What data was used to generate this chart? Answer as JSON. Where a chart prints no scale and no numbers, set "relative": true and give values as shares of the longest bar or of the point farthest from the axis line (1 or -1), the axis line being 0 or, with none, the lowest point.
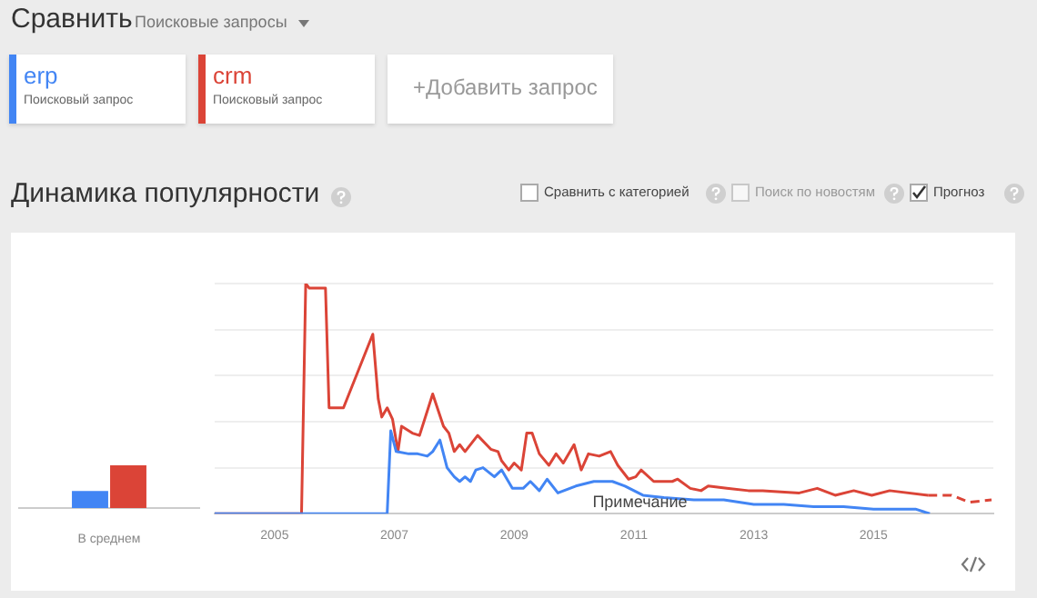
{
  "chart_data": [
    {
      "type": "other",
      "title": "Сравнить",
      "subtitle": "Динамика популярности",
      "annotations": [
        "Поисковые запросы",
        "Поисковый запрос",
        "Поисковый запрос",
        "+Добавить запрос",
        "Сравнить с категорией",
        "Поиск по новостям",
        "Прогноз"
      ]
    },
    {
      "type": "bar",
      "relative": true,
      "categories": [
        "В среднем"
      ],
      "series": [
        {
          "color": "#4285f4",
          "values": [
            0.4
          ]
        },
        {
          "color": "#db4437",
          "values": [
            1
          ]
        }
      ]
    },
    {
      "type": "line",
      "relative": true,
      "xlim": [
        2004,
        2017
      ],
      "xticks": [
        2005,
        2007,
        2009,
        2011,
        2013,
        2015
      ],
      "grid": "y",
      "legend": "top left",
      "annotations": [
        {
          "text": "Примечание",
          "x": 2011.1,
          "y": 0.05
        }
      ],
      "series": [
        {
          "name": "erp",
          "color": "#4285f4",
          "x": [
            2004,
            2006.88,
            2006.94,
            2007.03,
            2007.24,
            2007.39,
            2007.55,
            2007.64,
            2007.76,
            2007.88,
            2008,
            2008.09,
            2008.18,
            2008.27,
            2008.36,
            2008.48,
            2008.67,
            2008.79,
            2008.97,
            2009.15,
            2009.27,
            2009.42,
            2009.55,
            2009.73,
            2010.03,
            2010.33,
            2010.64,
            2010.85,
            2011.15,
            2011.5,
            2012,
            2012.5,
            2013,
            2013.5,
            2014,
            2014.5,
            2015,
            2015.7,
            2015.94
          ],
          "values": [
            0,
            0,
            0.36,
            0.27,
            0.26,
            0.26,
            0.25,
            0.27,
            0.32,
            0.2,
            0.16,
            0.14,
            0.16,
            0.14,
            0.19,
            0.2,
            0.16,
            0.19,
            0.11,
            0.11,
            0.14,
            0.1,
            0.15,
            0.09,
            0.12,
            0.14,
            0.14,
            0.12,
            0.08,
            0.07,
            0.06,
            0.06,
            0.04,
            0.04,
            0.03,
            0.03,
            0.02,
            0.02,
            0
          ]
        },
        {
          "name": "crm",
          "color": "#db4437",
          "x": [
            2004,
            2005.45,
            2005.52,
            2005.58,
            2005.85,
            2005.91,
            2006.15,
            2006.64,
            2006.73,
            2006.79,
            2006.88,
            2006.97,
            2007.06,
            2007.12,
            2007.3,
            2007.42,
            2007.64,
            2007.82,
            2007.91,
            2008,
            2008.09,
            2008.18,
            2008.39,
            2008.61,
            2008.73,
            2008.79,
            2008.91,
            2009,
            2009.12,
            2009.21,
            2009.3,
            2009.42,
            2009.58,
            2009.7,
            2009.82,
            2010,
            2010.12,
            2010.24,
            2010.42,
            2010.61,
            2010.73,
            2010.91,
            2011.03,
            2011.12,
            2011.33,
            2011.64,
            2011.73,
            2011.94,
            2012.12,
            2012.24,
            2012.55,
            2012.91,
            2013.15,
            2013.76,
            2014.06,
            2014.36,
            2014.67,
            2014.97,
            2015.27,
            2015.91
          ],
          "values": [
            0,
            0,
            1,
            0.98,
            0.98,
            0.46,
            0.46,
            0.78,
            0.5,
            0.42,
            0.46,
            0.41,
            0.27,
            0.38,
            0.35,
            0.34,
            0.52,
            0.38,
            0.35,
            0.27,
            0.3,
            0.27,
            0.34,
            0.28,
            0.27,
            0.23,
            0.19,
            0.22,
            0.19,
            0.35,
            0.35,
            0.26,
            0.21,
            0.26,
            0.22,
            0.3,
            0.19,
            0.26,
            0.25,
            0.27,
            0.21,
            0.15,
            0.16,
            0.19,
            0.14,
            0.14,
            0.15,
            0.11,
            0.1,
            0.12,
            0.11,
            0.1,
            0.1,
            0.09,
            0.11,
            0.08,
            0.1,
            0.08,
            0.1,
            0.08
          ]
        },
        {
          "color": "#db4437",
          "line_style": "dashed",
          "x": [
            2015.91,
            2016.3,
            2016.6,
            2016.97
          ],
          "values": [
            0.08,
            0.08,
            0.05,
            0.06
          ]
        }
      ]
    }
  ]
}
